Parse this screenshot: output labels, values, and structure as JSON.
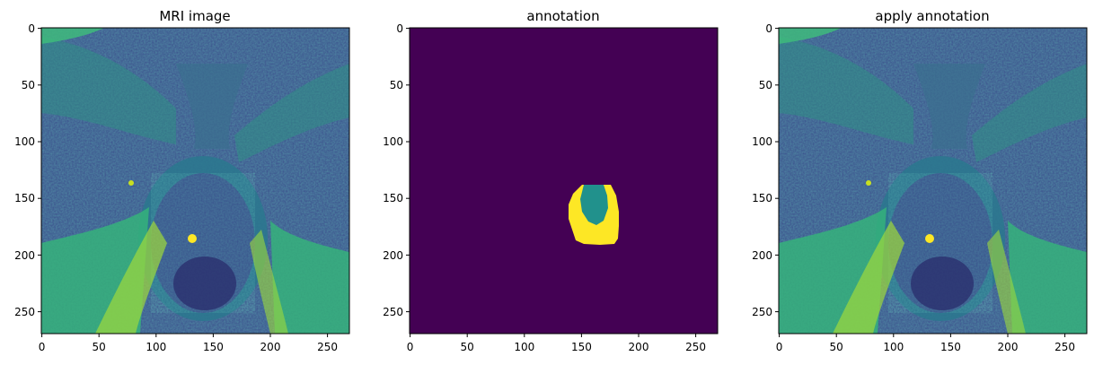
{
  "panels": [
    {
      "id": "mri",
      "title": "MRI image",
      "x_ticks": [
        "0",
        "50",
        "100",
        "150",
        "200",
        "250"
      ],
      "y_ticks": [
        "0",
        "50",
        "100",
        "150",
        "200",
        "250"
      ]
    },
    {
      "id": "annotation",
      "title": "annotation",
      "x_ticks": [
        "0",
        "50",
        "100",
        "150",
        "200",
        "250"
      ],
      "y_ticks": [
        "0",
        "50",
        "100",
        "150",
        "200",
        "250"
      ]
    },
    {
      "id": "apply",
      "title": "apply annotation",
      "x_ticks": [
        "0",
        "50",
        "100",
        "150",
        "200",
        "250"
      ],
      "y_ticks": [
        "0",
        "50",
        "100",
        "150",
        "200",
        "250"
      ]
    }
  ],
  "colors": {
    "viridis_dark": "#440154",
    "viridis_mid": "#21918c",
    "viridis_bright": "#fde725"
  }
}
